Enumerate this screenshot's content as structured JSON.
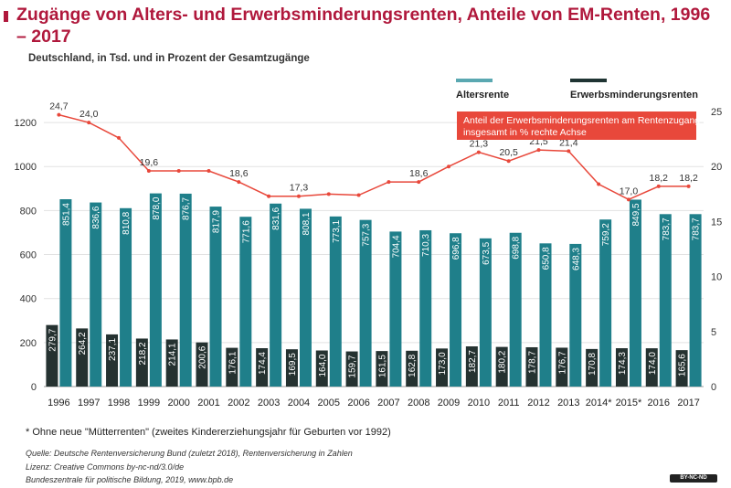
{
  "header": {
    "title": "Zugänge von Alters- und Erwerbsminderungsrenten, Anteile von EM-Renten, 1996 – 2017",
    "subtitle": "Deutschland, in Tsd. und in Prozent der Gesamtzugänge"
  },
  "chart_data": {
    "type": "bar",
    "categories": [
      "1996",
      "1997",
      "1998",
      "1999",
      "2000",
      "2001",
      "2002",
      "2003",
      "2004",
      "2005",
      "2006",
      "2007",
      "2008",
      "2009",
      "2010",
      "2011",
      "2012",
      "2013",
      "2014*",
      "2015*",
      "2016",
      "2017"
    ],
    "series": [
      {
        "name": "Altersrente",
        "color": "#1f7f8a",
        "legend_color": "#5aa8b1",
        "values": [
          851.4,
          836.6,
          810.8,
          878.0,
          876.7,
          817.9,
          771.6,
          831.6,
          808.1,
          773.1,
          757.3,
          704.4,
          710.3,
          696.8,
          673.5,
          698.8,
          650.8,
          648.3,
          759.2,
          849.5,
          783.7,
          783.7
        ],
        "labels": [
          "851,4",
          "836,6",
          "810,8",
          "878,0",
          "876,7",
          "817,9",
          "771,6",
          "831,6",
          "808,1",
          "773,1",
          "757,3",
          "704,4",
          "710,3",
          "696,8",
          "673,5",
          "698,8",
          "650,8",
          "648,3",
          "759,2",
          "849,5",
          "783,7",
          "783,7"
        ]
      },
      {
        "name": "Erwerbsminderungsrenten",
        "color": "#253231",
        "legend_color": "#1f3433",
        "values": [
          279.7,
          264.2,
          237.1,
          218.2,
          214.1,
          200.6,
          176.1,
          174.4,
          169.5,
          164.0,
          159.7,
          161.5,
          162.8,
          173.0,
          182.7,
          180.2,
          178.7,
          176.7,
          170.8,
          174.3,
          174.0,
          165.6
        ],
        "labels": [
          "279,7",
          "264,2",
          "237,1",
          "218,2",
          "214,1",
          "200,6",
          "176,1",
          "174,4",
          "169,5",
          "164,0",
          "159,7",
          "161,5",
          "162,8",
          "173,0",
          "182,7",
          "180,2",
          "178,7",
          "176,7",
          "170,8",
          "174,3",
          "174,0",
          "165,6"
        ]
      },
      {
        "name": "Anteil der Erwerbsminderungsrenten am Rentenzugang insgesamt in % rechte Achse",
        "type": "line",
        "axis": "right",
        "color": "#e8483b",
        "values": [
          24.7,
          24.0,
          22.6,
          19.6,
          19.6,
          19.6,
          18.6,
          17.3,
          17.3,
          17.5,
          17.4,
          18.6,
          18.6,
          20.0,
          21.3,
          20.5,
          21.5,
          21.4,
          18.4,
          17.0,
          18.2,
          18.2
        ],
        "labels": [
          "24,7",
          "24,0",
          "",
          "19,6",
          "",
          "",
          "18,6",
          "",
          "17,3",
          "",
          "",
          "",
          "18,6",
          "",
          "21,3",
          "20,5",
          "21,5",
          "21,4",
          "",
          "17,0",
          "18,2",
          "18,2"
        ]
      }
    ],
    "ylim": [
      0,
      1300
    ],
    "yticks": [
      0,
      200,
      400,
      600,
      800,
      1000,
      1200
    ],
    "y2lim": [
      0,
      26
    ],
    "y2ticks": [
      0,
      5,
      10,
      15,
      20,
      25
    ],
    "legend": {
      "bar1": "Altersrente",
      "bar2": "Erwerbsminderungsrenten",
      "line_text_1": "Anteil der Erwerbsminderungsrenten am Rentenzugang",
      "line_text_2": "insgesamt in % rechte Achse"
    }
  },
  "footnote": "* Ohne neue \"Mütterrenten\" (zweites Kindererziehungsjahr für Geburten vor 1992)",
  "sources": [
    "Quelle: Deutsche Rentenversicherung Bund (zuletzt 2018), Rentenversicherung in Zahlen",
    "Lizenz: Creative Commons by-nc-nd/3.0/de",
    "Bundeszentrale für politische Bildung, 2019, www.bpb.de"
  ],
  "badge": "BY-NC-ND"
}
